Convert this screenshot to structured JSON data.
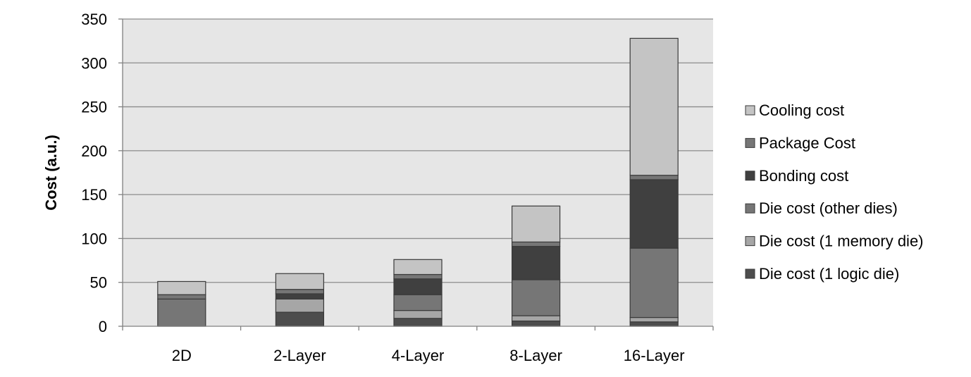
{
  "chart_data": {
    "type": "bar",
    "stacked": true,
    "title": "",
    "xlabel": "",
    "ylabel": "Cost (a.u.)",
    "ylim": [
      0,
      350
    ],
    "yticks": [
      0,
      50,
      100,
      150,
      200,
      250,
      300,
      350
    ],
    "grid": true,
    "legend_position": "right",
    "categories": [
      "2D",
      "2-Layer",
      "4-Layer",
      "8-Layer",
      "16-Layer"
    ],
    "series": [
      {
        "name": "Die cost (1 logic die)",
        "color": "#4d4d4d",
        "values": [
          0,
          16,
          9,
          6,
          5
        ]
      },
      {
        "name": "Die cost (1 memory die)",
        "color": "#a6a6a6",
        "values": [
          0,
          15,
          9,
          6,
          5
        ]
      },
      {
        "name": "Die cost (other dies)",
        "color": "#767676",
        "values": [
          31,
          0,
          18,
          41,
          79
        ]
      },
      {
        "name": "Bonding cost",
        "color": "#404040",
        "values": [
          0,
          6,
          18,
          38,
          78
        ]
      },
      {
        "name": "Package Cost",
        "color": "#767676",
        "values": [
          5,
          5,
          5,
          5,
          5
        ]
      },
      {
        "name": "Cooling cost",
        "color": "#c4c4c4",
        "values": [
          15,
          18,
          17,
          41,
          156
        ]
      }
    ]
  }
}
